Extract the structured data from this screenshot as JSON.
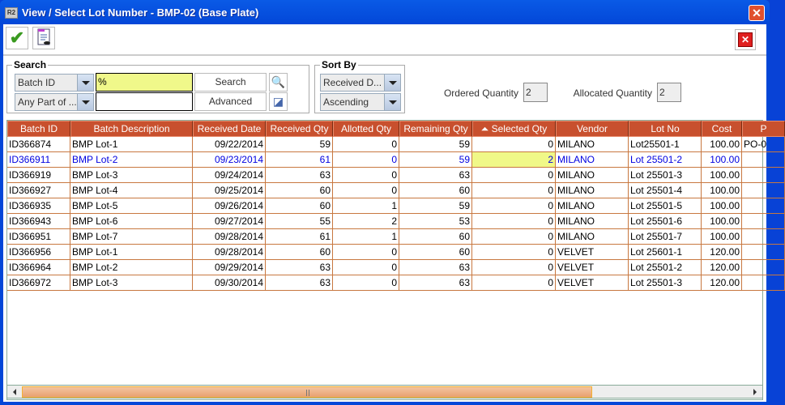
{
  "window": {
    "title": "View / Select Lot Number - BMP-02 (Base Plate)",
    "icon": "R2-app-icon"
  },
  "toolbar": {
    "ok_icon": "checkmark-icon",
    "report_icon": "document-view-icon",
    "cancel_icon": "close-red-icon"
  },
  "search": {
    "legend": "Search",
    "field": "Batch ID",
    "match": "Any Part of ...",
    "value": "%",
    "value2": "",
    "search_label": "Search",
    "advanced_label": "Advanced"
  },
  "sort": {
    "legend": "Sort By",
    "field": "Received D...",
    "order": "Ascending"
  },
  "quantities": {
    "ordered_label": "Ordered Quantity",
    "ordered": "2",
    "allocated_label": "Allocated Quantity",
    "allocated": "2"
  },
  "table": {
    "columns": [
      "Batch ID",
      "Batch Description",
      "Received Date",
      "Received Qty",
      "Allotted Qty",
      "Remaining Qty",
      "Selected Qty",
      "Vendor",
      "Lot No",
      "Cost",
      "P"
    ],
    "sort_column": "Selected Qty",
    "rows": [
      [
        "ID366874",
        "BMP Lot-1",
        "09/22/2014",
        "59",
        "0",
        "59",
        "0",
        "MILANO",
        "Lot25501-1",
        "100.00",
        "PO-0"
      ],
      [
        "ID366911",
        "BMP Lot-2",
        "09/23/2014",
        "61",
        "0",
        "59",
        "2",
        "MILANO",
        "Lot 25501-2",
        "100.00",
        ""
      ],
      [
        "ID366919",
        "BMP Lot-3",
        "09/24/2014",
        "63",
        "0",
        "63",
        "0",
        "MILANO",
        "Lot 25501-3",
        "100.00",
        ""
      ],
      [
        "ID366927",
        "BMP Lot-4",
        "09/25/2014",
        "60",
        "0",
        "60",
        "0",
        "MILANO",
        "Lot 25501-4",
        "100.00",
        ""
      ],
      [
        "ID366935",
        "BMP Lot-5",
        "09/26/2014",
        "60",
        "1",
        "59",
        "0",
        "MILANO",
        "Lot 25501-5",
        "100.00",
        ""
      ],
      [
        "ID366943",
        "BMP Lot-6",
        "09/27/2014",
        "55",
        "2",
        "53",
        "0",
        "MILANO",
        "Lot 25501-6",
        "100.00",
        ""
      ],
      [
        "ID366951",
        "BMP Lot-7",
        "09/28/2014",
        "61",
        "1",
        "60",
        "0",
        "MILANO",
        "Lot 25501-7",
        "100.00",
        ""
      ],
      [
        "ID366956",
        "BMP Lot-1",
        "09/28/2014",
        "60",
        "0",
        "60",
        "0",
        "VELVET",
        "Lot 25601-1",
        "120.00",
        ""
      ],
      [
        "ID366964",
        "BMP Lot-2",
        "09/29/2014",
        "63",
        "0",
        "63",
        "0",
        "VELVET",
        "Lot 25501-2",
        "120.00",
        ""
      ],
      [
        "ID366972",
        "BMP Lot-3",
        "09/30/2014",
        "63",
        "0",
        "63",
        "0",
        "VELVET",
        "Lot 25501-3",
        "120.00",
        ""
      ]
    ],
    "selected_row": 1
  }
}
